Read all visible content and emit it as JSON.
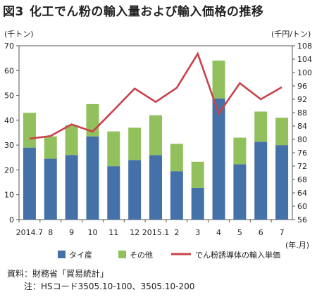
{
  "figure_label": "図3",
  "title": "化工でん粉の輸入量および輸入価格の推移",
  "chart_data": {
    "type": "bar",
    "stacked": true,
    "categories": [
      "2014.7",
      "8",
      "9",
      "10",
      "11",
      "12",
      "2015.1",
      "2",
      "3",
      "4",
      "5",
      "6",
      "7"
    ],
    "series": [
      {
        "name": "タイ産",
        "color": "#4472a8",
        "axis": "left",
        "values": [
          29,
          24.5,
          26,
          33.5,
          21.5,
          24,
          26,
          19.5,
          12.8,
          48.8,
          22.3,
          31.3,
          30
        ]
      },
      {
        "name": "その他",
        "color": "#92c05c",
        "axis": "left",
        "values": [
          14,
          9,
          12,
          13,
          14,
          13,
          16,
          11,
          10.5,
          15.2,
          10.7,
          12.2,
          11
        ]
      },
      {
        "name": "でん粉誘導体の輸入単価",
        "type": "line",
        "color": "#c9424a",
        "axis": "right",
        "values": [
          80.2,
          81,
          84.5,
          82.3,
          88.7,
          95.2,
          91.2,
          95.4,
          105.6,
          87.7,
          96.8,
          92,
          95.6
        ]
      }
    ],
    "y_left": {
      "label": "(千トン)",
      "min": 0,
      "max": 70,
      "ticks": [
        0,
        10,
        20,
        30,
        40,
        50,
        60,
        70
      ]
    },
    "y_right": {
      "label": "(千円/トン)",
      "min": 56,
      "max": 108,
      "ticks": [
        56,
        60,
        64,
        68,
        72,
        76,
        80,
        84,
        88,
        92,
        96,
        100,
        104,
        108
      ]
    },
    "x_unit_label": "(年.月)",
    "grid": false,
    "legend_position": "bottom"
  },
  "source": {
    "line1": "資料：財務省「貿易統計」",
    "line2": "注：HSコード3505.10-100、3505.10-200"
  }
}
